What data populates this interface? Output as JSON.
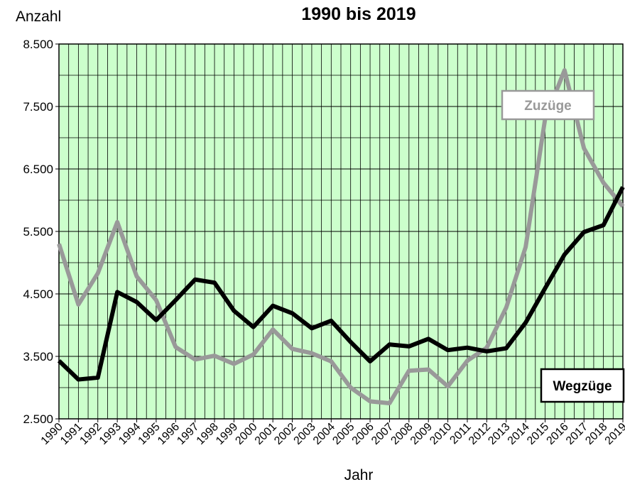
{
  "chart_data": {
    "type": "line",
    "title": "1990 bis 2019",
    "y_label": "Anzahl",
    "x_label": "Jahr",
    "categories": [
      "1990",
      "1991",
      "1992",
      "1993",
      "1994",
      "1995",
      "1996",
      "1997",
      "1998",
      "1999",
      "2000",
      "2001",
      "2002",
      "2003",
      "2004",
      "2005",
      "2006",
      "2007",
      "2008",
      "2009",
      "2010",
      "2011",
      "2012",
      "2013",
      "2014",
      "2015",
      "2016",
      "2017",
      "2018",
      "2019"
    ],
    "series": [
      {
        "name": "Zuzüge",
        "color": "#999999",
        "values": [
          5300,
          4330,
          4830,
          5650,
          4780,
          4400,
          3650,
          3450,
          3510,
          3380,
          3530,
          3930,
          3620,
          3550,
          3420,
          3000,
          2780,
          2750,
          3270,
          3290,
          3020,
          3430,
          3640,
          4280,
          5250,
          7300,
          8080,
          6830,
          6280,
          5900
        ]
      },
      {
        "name": "Wegzüge",
        "color": "#000000",
        "values": [
          3430,
          3130,
          3160,
          4530,
          4370,
          4080,
          4400,
          4730,
          4680,
          4230,
          3970,
          4310,
          4190,
          3950,
          4070,
          3730,
          3420,
          3690,
          3660,
          3780,
          3600,
          3640,
          3580,
          3630,
          4040,
          4590,
          5130,
          5490,
          5600,
          6210
        ]
      }
    ],
    "ylim": [
      2500,
      8500
    ],
    "yticks": [
      {
        "value": 2500,
        "label": "2.500"
      },
      {
        "value": 3500,
        "label": "3.500"
      },
      {
        "value": 4500,
        "label": "4.500"
      },
      {
        "value": 5500,
        "label": "5.500"
      },
      {
        "value": 6500,
        "label": "6.500"
      },
      {
        "value": 7500,
        "label": "7.500"
      },
      {
        "value": 8500,
        "label": "8.500"
      }
    ],
    "yminor": [
      3000,
      4000,
      5000,
      6000,
      7000,
      8000
    ],
    "grid": true,
    "background": "#ccffcc"
  }
}
